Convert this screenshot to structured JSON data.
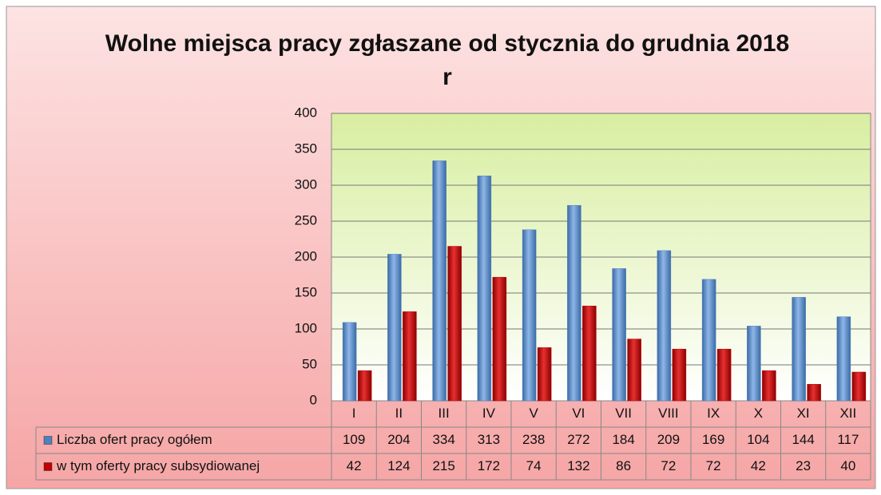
{
  "chart_data": {
    "type": "bar",
    "title": "Wolne miejsca pracy zgłaszane od stycznia do grudnia 2018 r",
    "categories": [
      "I",
      "II",
      "III",
      "IV",
      "V",
      "VI",
      "VII",
      "VIII",
      "IX",
      "X",
      "XI",
      "XII"
    ],
    "series": [
      {
        "name": "Liczba ofert pracy ogółem",
        "color": "#4f81bd",
        "values": [
          109,
          204,
          334,
          313,
          238,
          272,
          184,
          209,
          169,
          104,
          144,
          117
        ]
      },
      {
        "name": "w tym oferty pracy subsydiowanej",
        "color": "#c00000",
        "values": [
          42,
          124,
          215,
          172,
          74,
          132,
          86,
          72,
          72,
          42,
          23,
          40
        ]
      }
    ],
    "ylim": [
      0,
      400
    ],
    "yticks": [
      0,
      50,
      100,
      150,
      200,
      250,
      300,
      350,
      400
    ],
    "grid": true
  }
}
